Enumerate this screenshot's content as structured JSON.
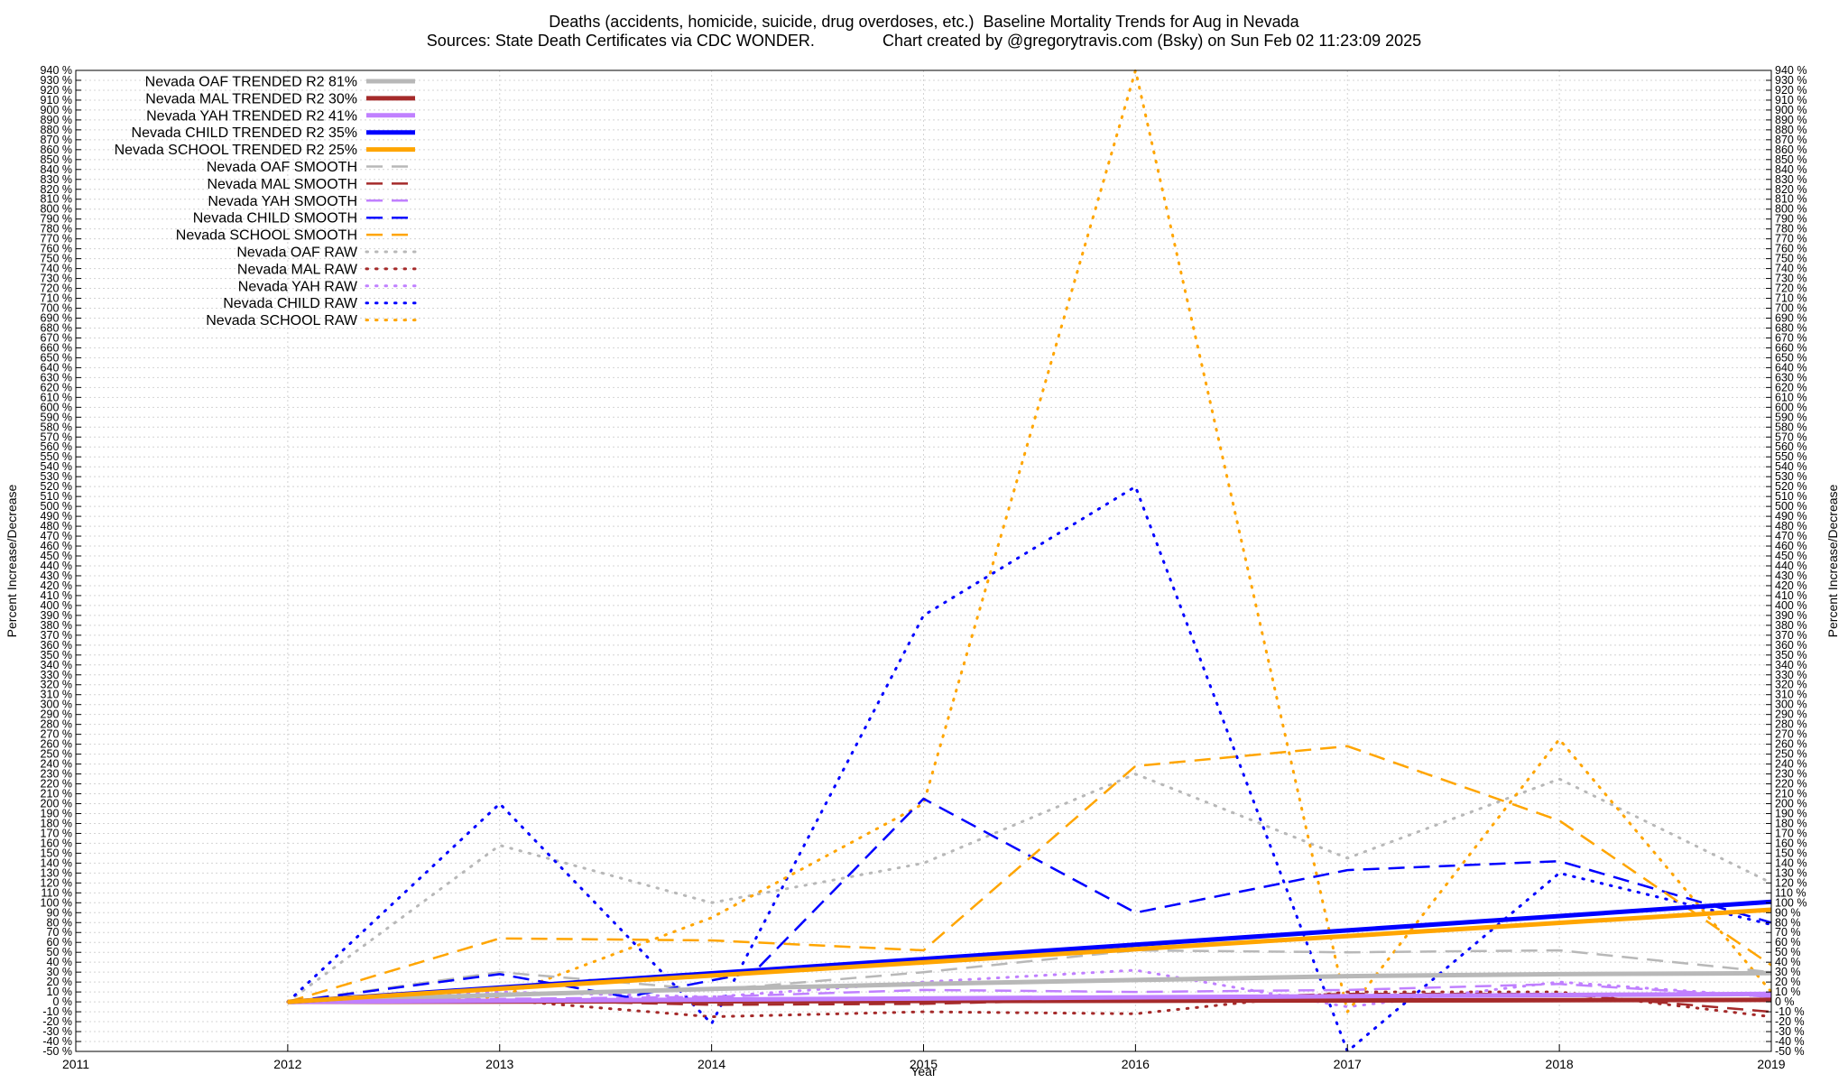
{
  "title_line1": "Deaths (accidents, homicide, suicide, drug overdoses, etc.)  Baseline Mortality Trends for Aug in Nevada",
  "title_line2": "Sources: State Death Certificates via CDC WONDER.               Chart created by @gregorytravis.com (Bsky) on Sun Feb 02 11:23:09 2025",
  "chart_data": {
    "type": "line",
    "xlabel": "Year",
    "ylabel": "Percent Increase/Decrease",
    "y2label": "Percent Increase/Decrease",
    "xlim": [
      2011,
      2019
    ],
    "ylim": [
      -50,
      940
    ],
    "xticks": [
      2011,
      2012,
      2013,
      2014,
      2015,
      2016,
      2017,
      2018,
      2019
    ],
    "ytick_step": 10,
    "ytick_suffix": " %",
    "grid": true,
    "legend_position": "top-left",
    "series": [
      {
        "name": "Nevada OAF TRENDED R2  81%",
        "style": "trend",
        "color": "#b8b8b8",
        "x": [
          2012,
          2013,
          2014,
          2015,
          2016,
          2017,
          2018,
          2019
        ],
        "y": [
          0,
          7,
          13,
          18,
          22,
          26,
          28,
          29
        ]
      },
      {
        "name": "Nevada MAL TRENDED R2  30%",
        "style": "trend",
        "color": "#a52a2a",
        "x": [
          2012,
          2019
        ],
        "y": [
          0,
          2
        ]
      },
      {
        "name": "Nevada YAH TRENDED R2  41%",
        "style": "trend",
        "color": "#c080ff",
        "x": [
          2012,
          2019
        ],
        "y": [
          0,
          8
        ]
      },
      {
        "name": "Nevada CHILD TRENDED R2  35%",
        "style": "trend",
        "color": "#0000ff",
        "x": [
          2012,
          2019
        ],
        "y": [
          0,
          101
        ]
      },
      {
        "name": "Nevada SCHOOL TRENDED R2  25%",
        "style": "trend",
        "color": "#ffa500",
        "x": [
          2012,
          2019
        ],
        "y": [
          0,
          93
        ]
      },
      {
        "name": "Nevada OAF SMOOTH",
        "style": "smooth",
        "color": "#b8b8b8",
        "x": [
          2012,
          2013,
          2014,
          2015,
          2016,
          2017,
          2018,
          2019
        ],
        "y": [
          0,
          30,
          12,
          30,
          52,
          50,
          52,
          30
        ]
      },
      {
        "name": "Nevada MAL SMOOTH",
        "style": "smooth",
        "color": "#a52a2a",
        "x": [
          2012,
          2013,
          2014,
          2015,
          2016,
          2017,
          2018,
          2019
        ],
        "y": [
          0,
          2,
          -3,
          -2,
          3,
          8,
          8,
          -10
        ]
      },
      {
        "name": "Nevada YAH SMOOTH",
        "style": "smooth",
        "color": "#c080ff",
        "x": [
          2012,
          2013,
          2014,
          2015,
          2016,
          2017,
          2018,
          2019
        ],
        "y": [
          0,
          3,
          5,
          12,
          10,
          12,
          18,
          5
        ]
      },
      {
        "name": "Nevada CHILD SMOOTH",
        "style": "smooth",
        "color": "#0000ff",
        "x": [
          2012,
          2013,
          2013.6,
          2014.2,
          2015,
          2016,
          2016.7,
          2017,
          2018,
          2019
        ],
        "y": [
          0,
          28,
          5,
          30,
          205,
          90,
          120,
          133,
          142,
          80
        ]
      },
      {
        "name": "Nevada SCHOOL SMOOTH",
        "style": "smooth",
        "color": "#ffa500",
        "x": [
          2012,
          2013,
          2014,
          2015,
          2016,
          2017,
          2018,
          2019
        ],
        "y": [
          0,
          64,
          62,
          52,
          238,
          258,
          183,
          37
        ]
      },
      {
        "name": "Nevada OAF RAW",
        "style": "raw",
        "color": "#b8b8b8",
        "x": [
          2012,
          2013,
          2014,
          2015,
          2016,
          2017,
          2018,
          2019
        ],
        "y": [
          0,
          158,
          100,
          140,
          230,
          145,
          225,
          120
        ]
      },
      {
        "name": "Nevada MAL RAW",
        "style": "raw",
        "color": "#a52a2a",
        "x": [
          2012,
          2013,
          2014,
          2015,
          2016,
          2017,
          2018,
          2019
        ],
        "y": [
          0,
          2,
          -15,
          -10,
          -12,
          10,
          10,
          -15
        ]
      },
      {
        "name": "Nevada YAH RAW",
        "style": "raw",
        "color": "#c080ff",
        "x": [
          2012,
          2013,
          2014,
          2015,
          2016,
          2017,
          2018,
          2019
        ],
        "y": [
          0,
          10,
          5,
          20,
          32,
          -5,
          20,
          5
        ]
      },
      {
        "name": "Nevada CHILD RAW",
        "style": "raw",
        "color": "#0000ff",
        "x": [
          2012,
          2013,
          2014,
          2015,
          2016,
          2017,
          2018,
          2019
        ],
        "y": [
          0,
          200,
          -22,
          390,
          520,
          -50,
          130,
          78
        ]
      },
      {
        "name": "Nevada SCHOOL RAW",
        "style": "raw",
        "color": "#ffa500",
        "x": [
          2012,
          2013,
          2014,
          2015,
          2016,
          2017,
          2018,
          2019
        ],
        "y": [
          0,
          5,
          85,
          200,
          940,
          -10,
          265,
          10
        ]
      }
    ]
  }
}
